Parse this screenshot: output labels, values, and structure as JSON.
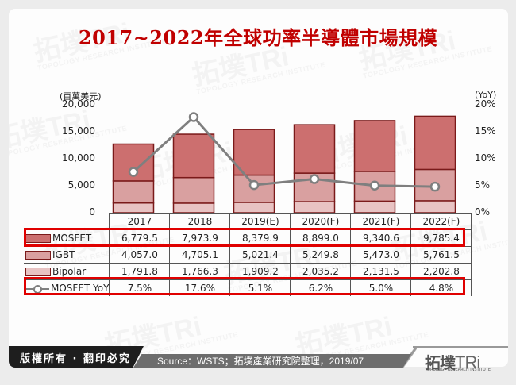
{
  "title": "2017~2022年全球功率半導體市場規模",
  "axes": {
    "left_unit": "(百萬美元)",
    "right_unit": "(YoY)",
    "left_ticks": [
      "20,000",
      "15,000",
      "10,000",
      "5,000",
      "0"
    ],
    "right_ticks": [
      "20%",
      "15%",
      "10%",
      "5%",
      "0%"
    ]
  },
  "table": {
    "years": [
      "2017",
      "2018",
      "2019(E)",
      "2020(F)",
      "2021(F)",
      "2022(F)"
    ],
    "rows": [
      {
        "label": "MOSFET",
        "values": [
          "6,779.5",
          "7,973.9",
          "8,379.9",
          "8,899.0",
          "9,340.6",
          "9,785.4"
        ]
      },
      {
        "label": "IGBT",
        "values": [
          "4,057.0",
          "4,705.1",
          "5,021.4",
          "5,249.8",
          "5,473.0",
          "5,761.5"
        ]
      },
      {
        "label": "Bipolar",
        "values": [
          "1,791.8",
          "1,766.3",
          "1,909.2",
          "2,035.2",
          "2,131.5",
          "2,202.8"
        ]
      },
      {
        "label": "MOSFET YoY",
        "values": [
          "7.5%",
          "17.6%",
          "5.1%",
          "6.2%",
          "5.0%",
          "4.8%"
        ]
      }
    ]
  },
  "colors": {
    "mosfet": "#cc6f6f",
    "igbt": "#d9a0a0",
    "bipolar": "#e8c3c3",
    "bar_border": "#7a1a1a",
    "yoy_line": "#7f7f7f",
    "title": "#c00000",
    "highlight": "#e00000"
  },
  "footer": {
    "copyright": "版權所有 · 翻印必究",
    "source": "Source：WSTS；拓墣產業研究院整理，2019/07",
    "logo_cn": "拓墣",
    "logo_tri": "TRi",
    "logo_en": "TOPOLOGY RESEARCH INSTITUTE"
  },
  "chart_data": {
    "type": "bar",
    "title": "2017~2022年全球功率半導體市場規模",
    "categories": [
      "2017",
      "2018",
      "2019(E)",
      "2020(F)",
      "2021(F)",
      "2022(F)"
    ],
    "stacked": true,
    "series": [
      {
        "name": "Bipolar",
        "type": "bar",
        "axis": "left",
        "values": [
          1791.8,
          1766.3,
          1909.2,
          2035.2,
          2131.5,
          2202.8
        ]
      },
      {
        "name": "IGBT",
        "type": "bar",
        "axis": "left",
        "values": [
          4057.0,
          4705.1,
          5021.4,
          5249.8,
          5473.0,
          5761.5
        ]
      },
      {
        "name": "MOSFET",
        "type": "bar",
        "axis": "left",
        "values": [
          6779.5,
          7973.9,
          8379.9,
          8899.0,
          9340.6,
          9785.4
        ]
      },
      {
        "name": "MOSFET YoY",
        "type": "line",
        "axis": "right",
        "values": [
          7.5,
          17.6,
          5.1,
          6.2,
          5.0,
          4.8
        ]
      }
    ],
    "xlabel": "",
    "ylabel": "(百萬美元)",
    "ylabel_right": "(YoY)",
    "ylim": [
      0,
      20000
    ],
    "ylim_right": [
      0,
      20
    ],
    "grid": false,
    "legend_position": "table-below"
  }
}
